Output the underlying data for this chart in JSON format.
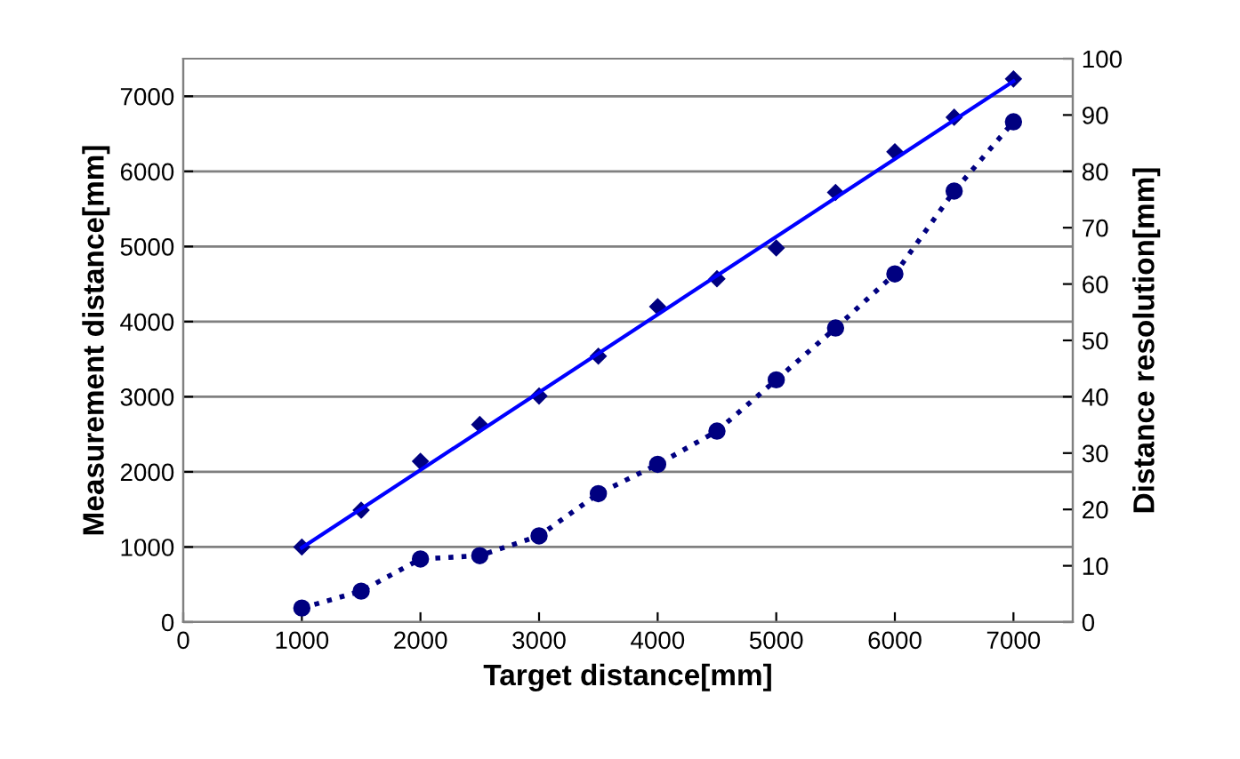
{
  "chart_data": {
    "type": "scatter",
    "xlabel": "Target distance[mm]",
    "ylabel": "Measurement distance[mm]",
    "y2label": "Distance resolution[mm]",
    "xlim": [
      0,
      7500
    ],
    "xticks": [
      0,
      1000,
      2000,
      3000,
      4000,
      5000,
      6000,
      7000
    ],
    "ylim": [
      0,
      7500
    ],
    "yticks": [
      0,
      1000,
      2000,
      3000,
      4000,
      5000,
      6000,
      7000
    ],
    "y2lim": [
      0,
      100
    ],
    "y2ticks": [
      0,
      10,
      20,
      30,
      40,
      50,
      60,
      70,
      80,
      90,
      100
    ],
    "grid": "y",
    "legend": false,
    "x": [
      1000,
      1500,
      2000,
      2500,
      3000,
      3500,
      4000,
      4500,
      5000,
      5500,
      6000,
      6500,
      7000
    ],
    "series": [
      {
        "marker": "diamond",
        "color": "#000080",
        "values": [
          1000,
          1490,
          2140,
          2630,
          3010,
          3540,
          4200,
          4570,
          4980,
          5720,
          6260,
          6720,
          7230
        ]
      },
      {
        "type": "line",
        "marker": "none",
        "line_style": "solid",
        "color": "#0000ff",
        "x": [
          1000,
          7000
        ],
        "values": [
          990,
          7200
        ]
      },
      {
        "type": "line",
        "axis": "y2",
        "marker": "circle",
        "line_style": "dotted",
        "color": "#000080",
        "values": [
          2.5,
          5.5,
          11.2,
          11.8,
          15.3,
          22.8,
          28,
          33.9,
          43,
          52.2,
          61.8,
          76.5,
          88.8
        ]
      }
    ]
  }
}
